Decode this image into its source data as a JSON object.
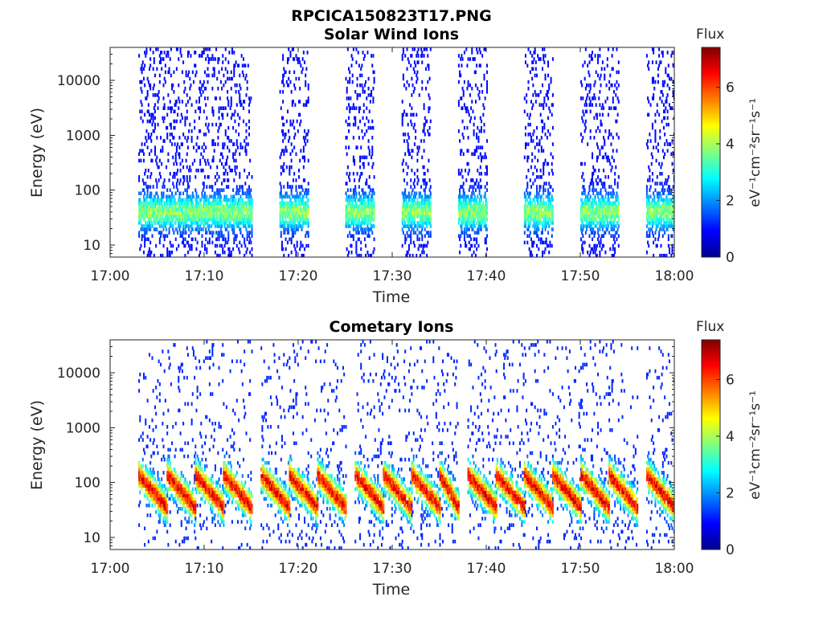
{
  "figure_title": "RPCICA150823T17.PNG",
  "chart_data": [
    {
      "type": "heatmap",
      "title": "Solar Wind Ions",
      "xlabel": "Time",
      "ylabel": "Energy (eV)",
      "y_scale": "log",
      "xlim": [
        "17:00",
        "18:00"
      ],
      "ylim": [
        6,
        40000
      ],
      "x_ticks": [
        "17:00",
        "17:10",
        "17:20",
        "17:30",
        "17:40",
        "17:50",
        "18:00"
      ],
      "y_ticks": [
        10,
        100,
        1000,
        10000
      ],
      "y_tick_labels": [
        "10",
        "100",
        "1000",
        "10000"
      ],
      "colorbar": {
        "label": "Flux",
        "unit": "eV⁻¹cm⁻²sr⁻¹s⁻¹",
        "range": [
          0,
          7.4
        ],
        "ticks": [
          0,
          2,
          4,
          6
        ],
        "tick_labels": [
          "0",
          "2",
          "4",
          "6"
        ],
        "colormap": "jet"
      },
      "bursts": [
        {
          "start": "17:03",
          "end": "17:15"
        },
        {
          "start": "17:18",
          "end": "17:21"
        },
        {
          "start": "17:25",
          "end": "17:28"
        },
        {
          "start": "17:31",
          "end": "17:34"
        },
        {
          "start": "17:37",
          "end": "17:40"
        },
        {
          "start": "17:44",
          "end": "17:47"
        },
        {
          "start": "17:50",
          "end": "17:54"
        },
        {
          "start": "17:57",
          "end": "18:00"
        }
      ],
      "peak_energy_eV": 40,
      "peak_flux": 4.5
    },
    {
      "type": "heatmap",
      "title": "Cometary Ions",
      "xlabel": "Time",
      "ylabel": "Energy (eV)",
      "y_scale": "log",
      "xlim": [
        "17:00",
        "18:00"
      ],
      "ylim": [
        6,
        40000
      ],
      "x_ticks": [
        "17:00",
        "17:10",
        "17:20",
        "17:30",
        "17:40",
        "17:50",
        "18:00"
      ],
      "y_ticks": [
        10,
        100,
        1000,
        10000
      ],
      "y_tick_labels": [
        "10",
        "100",
        "1000",
        "10000"
      ],
      "colorbar": {
        "label": "Flux",
        "unit": "eV⁻¹cm⁻²sr⁻¹s⁻¹",
        "range": [
          0,
          7.4
        ],
        "ticks": [
          0,
          2,
          4,
          6
        ],
        "tick_labels": [
          "0",
          "2",
          "4",
          "6"
        ],
        "colormap": "jet"
      },
      "bursts": [
        {
          "start": "17:03",
          "end": "17:06"
        },
        {
          "start": "17:06",
          "end": "17:09"
        },
        {
          "start": "17:09",
          "end": "17:12"
        },
        {
          "start": "17:12",
          "end": "17:15"
        },
        {
          "start": "17:16",
          "end": "17:19"
        },
        {
          "start": "17:19",
          "end": "17:22"
        },
        {
          "start": "17:22",
          "end": "17:25"
        },
        {
          "start": "17:26",
          "end": "17:29"
        },
        {
          "start": "17:29",
          "end": "17:32"
        },
        {
          "start": "17:32",
          "end": "17:35"
        },
        {
          "start": "17:35",
          "end": "17:37"
        },
        {
          "start": "17:38",
          "end": "17:41"
        },
        {
          "start": "17:41",
          "end": "17:44"
        },
        {
          "start": "17:44",
          "end": "17:47"
        },
        {
          "start": "17:47",
          "end": "17:50"
        },
        {
          "start": "17:50",
          "end": "17:53"
        },
        {
          "start": "17:53",
          "end": "17:56"
        },
        {
          "start": "17:57",
          "end": "18:00"
        }
      ],
      "peak_energy_eV": 35,
      "peak_flux": 7
    }
  ]
}
